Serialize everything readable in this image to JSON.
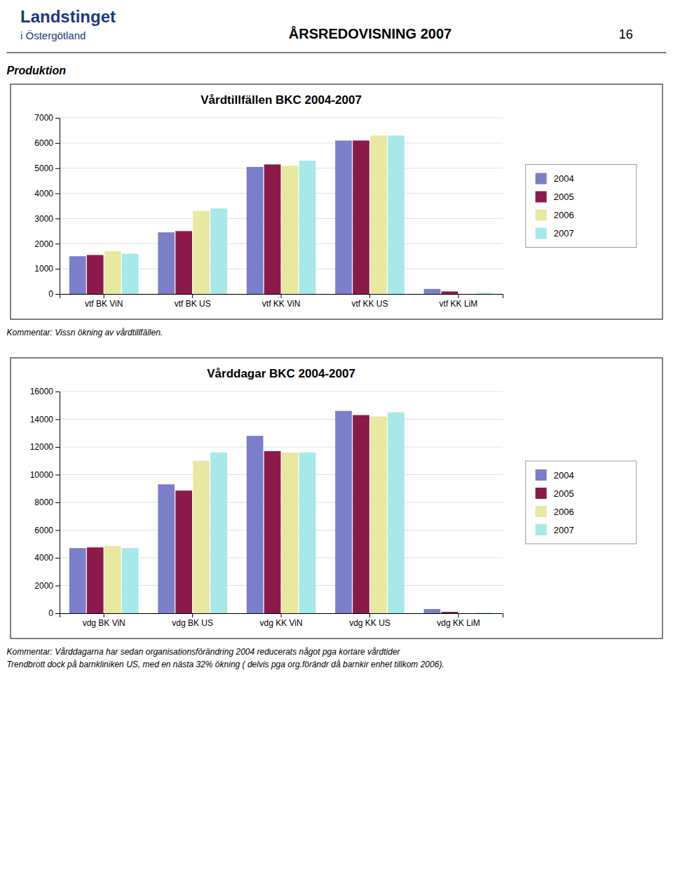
{
  "logo": "Landstinget",
  "logo_subtitle": "i Östergötland",
  "header": "ÅRSREDOVISNING 2007",
  "page_number": "16",
  "section_title": "Produktion",
  "chart_data": [
    {
      "type": "bar",
      "title": "Vårdtillfällen BKC 2004-2007",
      "categories": [
        "vtf BK ViN",
        "vtf BK US",
        "vtf KK ViN",
        "vtf KK US",
        "vtf KK LiM"
      ],
      "series": [
        {
          "name": "2004",
          "color": "#7B7EC8",
          "values": [
            1500,
            2450,
            5050,
            6100,
            200
          ]
        },
        {
          "name": "2005",
          "color": "#8B1A4A",
          "values": [
            1550,
            2500,
            5150,
            6100,
            100
          ]
        },
        {
          "name": "2006",
          "color": "#E8E8A0",
          "values": [
            1700,
            3300,
            5100,
            6300,
            0
          ]
        },
        {
          "name": "2007",
          "color": "#A8E8E8",
          "values": [
            1600,
            3400,
            5300,
            6300,
            50
          ]
        }
      ],
      "ylim": [
        0,
        7000
      ],
      "yticks": [
        0,
        1000,
        2000,
        3000,
        4000,
        5000,
        6000,
        7000
      ],
      "grid": true,
      "legend": "right",
      "annotations": [
        "Kommentar: Vissn ökning av vårdtillfällen."
      ]
    },
    {
      "type": "bar",
      "title": "Vårddagar BKC 2004-2007",
      "categories": [
        "vdg BK ViN",
        "vdg BK US",
        "vdg KK ViN",
        "vdg KK US",
        "vdg KK LiM"
      ],
      "series": [
        {
          "name": "2004",
          "color": "#7B7EC8",
          "values": [
            4700,
            9300,
            12800,
            14600,
            300
          ]
        },
        {
          "name": "2005",
          "color": "#8B1A4A",
          "values": [
            4750,
            8850,
            11700,
            14300,
            100
          ]
        },
        {
          "name": "2006",
          "color": "#E8E8A0",
          "values": [
            4850,
            11000,
            11600,
            14200,
            0
          ]
        },
        {
          "name": "2007",
          "color": "#A8E8E8",
          "values": [
            4700,
            11600,
            11600,
            14500,
            50
          ]
        }
      ],
      "ylim": [
        0,
        16000
      ],
      "yticks": [
        0,
        2000,
        4000,
        6000,
        8000,
        10000,
        12000,
        14000,
        16000
      ],
      "grid": true,
      "legend": "right",
      "annotations": [
        "Kommentar: Vårddagarna har sedan organisationsförändring 2004 reducerats något pga kortare vårdtider",
        "Trendbrott dock på barnkliniken US, med en nästa 32% ökning ( delvis pga org.förändr då barnkir enhet tillkom 2006)."
      ]
    }
  ]
}
